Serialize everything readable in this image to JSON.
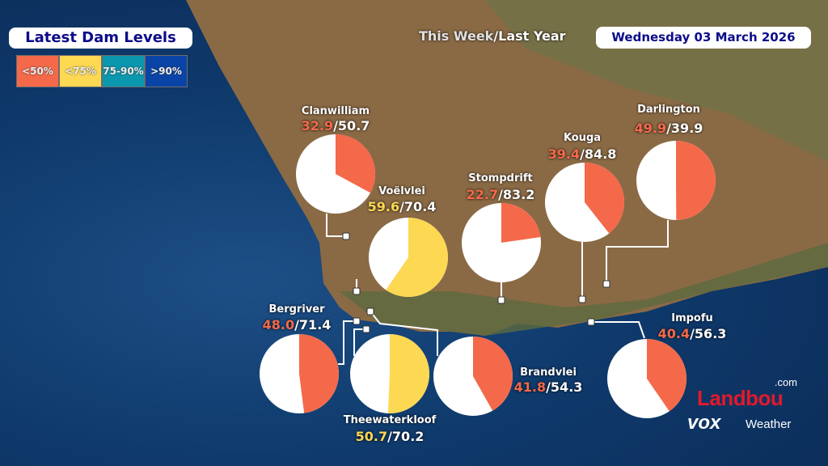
{
  "header": {
    "title": "Latest Dam Levels",
    "subtitle_this": "This Week",
    "subtitle_sep": "/",
    "subtitle_last": "Last Year",
    "date": "Wednesday 03 March 2026"
  },
  "legend": [
    {
      "label": "<50%",
      "color": "#f4694a"
    },
    {
      "label": "<75%",
      "color": "#fcd853"
    },
    {
      "label": "75-90%",
      "color": "#0b97ad"
    },
    {
      "label": ">90%",
      "color": "#0a44a6"
    }
  ],
  "dams": [
    {
      "name": "Clanwilliam",
      "this_week": "32.9",
      "last_year": "50.7",
      "color": "#f4694a"
    },
    {
      "name": "Voëlvlei",
      "this_week": "59.6",
      "last_year": "70.4",
      "color": "#fcd853"
    },
    {
      "name": "Stompdrift",
      "this_week": "22.7",
      "last_year": "83.2",
      "color": "#f4694a"
    },
    {
      "name": "Kouga",
      "this_week": "39.4",
      "last_year": "84.8",
      "color": "#f4694a"
    },
    {
      "name": "Darlington",
      "this_week": "49.9",
      "last_year": "39.9",
      "color": "#f4694a"
    },
    {
      "name": "Bergriver",
      "this_week": "48.0",
      "last_year": "71.4",
      "color": "#f4694a"
    },
    {
      "name": "Theewaterkloof",
      "this_week": "50.7",
      "last_year": "70.2",
      "color": "#fcd853"
    },
    {
      "name": "Brandvlei",
      "this_week": "41.8",
      "last_year": "54.3",
      "color": "#f4694a"
    },
    {
      "name": "Impofu",
      "this_week": "40.4",
      "last_year": "56.3",
      "color": "#f4694a"
    }
  ],
  "sep": "/",
  "logo": {
    "brand": "Landbou",
    "domain": ".com",
    "partner": "vox",
    "partner_suffix": "Weather"
  }
}
